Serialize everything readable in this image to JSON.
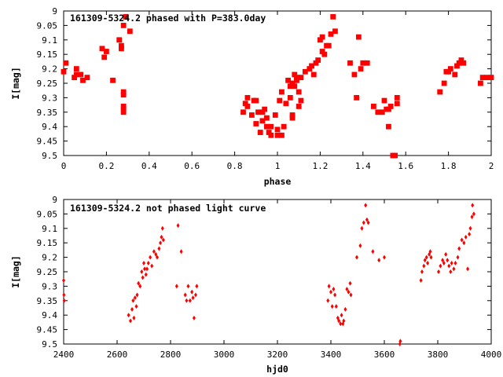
{
  "colors": {
    "points": "#ff0000",
    "axes": "#000000",
    "grid": "#a0a0a0",
    "background": "#ffffff"
  },
  "chart_data": [
    {
      "type": "scatter",
      "title": "161309-5324.2 phased with P=383.0day",
      "xlabel": "phase",
      "ylabel": "I[mag]",
      "xlim": [
        0,
        2
      ],
      "ylim": [
        9.5,
        9
      ],
      "y_inverted": true,
      "grid": false,
      "legend": "none",
      "xticks": [
        "0",
        "0.2",
        "0.4",
        "0.6",
        "0.8",
        "1",
        "1.2",
        "1.4",
        "1.6",
        "1.8",
        "2"
      ],
      "xtick_values": [
        0,
        0.2,
        0.4,
        0.6,
        0.8,
        1,
        1.2,
        1.4,
        1.6,
        1.8,
        2
      ],
      "yticks": [
        "9",
        "9.05",
        "9.1",
        "9.15",
        "9.2",
        "9.25",
        "9.3",
        "9.35",
        "9.4",
        "9.45",
        "9.5"
      ],
      "ytick_values": [
        9,
        9.05,
        9.1,
        9.15,
        9.2,
        9.25,
        9.3,
        9.35,
        9.4,
        9.45,
        9.5
      ],
      "marker": "square-large",
      "series": [
        {
          "points": [
            [
              0.0,
              9.21
            ],
            [
              0.01,
              9.18
            ],
            [
              0.05,
              9.23
            ],
            [
              0.06,
              9.22
            ],
            [
              0.06,
              9.2
            ],
            [
              0.08,
              9.22
            ],
            [
              0.09,
              9.24
            ],
            [
              0.11,
              9.23
            ],
            [
              0.18,
              9.13
            ],
            [
              0.19,
              9.16
            ],
            [
              0.2,
              9.14
            ],
            [
              0.23,
              9.24
            ],
            [
              0.26,
              9.1
            ],
            [
              0.27,
              9.13
            ],
            [
              0.27,
              9.12
            ],
            [
              0.28,
              9.28
            ],
            [
              0.28,
              9.29
            ],
            [
              0.28,
              9.33
            ],
            [
              0.28,
              9.35
            ],
            [
              0.28,
              9.34
            ],
            [
              0.28,
              9.05
            ],
            [
              0.29,
              9.02
            ],
            [
              0.31,
              9.07
            ],
            [
              0.84,
              9.35
            ],
            [
              0.85,
              9.32
            ],
            [
              0.86,
              9.33
            ],
            [
              0.86,
              9.3
            ],
            [
              0.88,
              9.36
            ],
            [
              0.89,
              9.31
            ],
            [
              0.9,
              9.31
            ],
            [
              0.9,
              9.39
            ],
            [
              0.91,
              9.35
            ],
            [
              0.92,
              9.42
            ],
            [
              0.93,
              9.35
            ],
            [
              0.93,
              9.38
            ],
            [
              0.94,
              9.34
            ],
            [
              0.95,
              9.37
            ],
            [
              0.95,
              9.4
            ],
            [
              0.96,
              9.42
            ],
            [
              0.97,
              9.43
            ],
            [
              0.97,
              9.4
            ],
            [
              0.99,
              9.36
            ],
            [
              1.0,
              9.41
            ],
            [
              1.0,
              9.43
            ],
            [
              1.01,
              9.31
            ],
            [
              1.02,
              9.28
            ],
            [
              1.02,
              9.43
            ],
            [
              1.03,
              9.4
            ],
            [
              1.04,
              9.32
            ],
            [
              1.05,
              9.24
            ],
            [
              1.06,
              9.3
            ],
            [
              1.06,
              9.26
            ],
            [
              1.07,
              9.25
            ],
            [
              1.07,
              9.36
            ],
            [
              1.07,
              9.37
            ],
            [
              1.08,
              9.26
            ],
            [
              1.08,
              9.22
            ],
            [
              1.09,
              9.24
            ],
            [
              1.09,
              9.23
            ],
            [
              1.1,
              9.33
            ],
            [
              1.1,
              9.28
            ],
            [
              1.11,
              9.31
            ],
            [
              1.11,
              9.23
            ],
            [
              1.13,
              9.21
            ],
            [
              1.15,
              9.2
            ],
            [
              1.16,
              9.19
            ],
            [
              1.17,
              9.22
            ],
            [
              1.18,
              9.18
            ],
            [
              1.19,
              9.17
            ],
            [
              1.2,
              9.1
            ],
            [
              1.21,
              9.09
            ],
            [
              1.21,
              9.14
            ],
            [
              1.22,
              9.15
            ],
            [
              1.23,
              9.12
            ],
            [
              1.24,
              9.12
            ],
            [
              1.25,
              9.08
            ],
            [
              1.26,
              9.02
            ],
            [
              1.27,
              9.07
            ],
            [
              1.34,
              9.18
            ],
            [
              1.36,
              9.22
            ],
            [
              1.37,
              9.3
            ],
            [
              1.38,
              9.09
            ],
            [
              1.39,
              9.2
            ],
            [
              1.4,
              9.18
            ],
            [
              1.42,
              9.18
            ],
            [
              1.45,
              9.33
            ],
            [
              1.47,
              9.35
            ],
            [
              1.49,
              9.35
            ],
            [
              1.5,
              9.31
            ],
            [
              1.51,
              9.34
            ],
            [
              1.52,
              9.4
            ],
            [
              1.52,
              9.34
            ],
            [
              1.53,
              9.33
            ],
            [
              1.54,
              9.5
            ],
            [
              1.55,
              9.5
            ],
            [
              1.56,
              9.32
            ],
            [
              1.56,
              9.3
            ],
            [
              1.76,
              9.28
            ],
            [
              1.78,
              9.25
            ],
            [
              1.79,
              9.21
            ],
            [
              1.8,
              9.21
            ],
            [
              1.81,
              9.2
            ],
            [
              1.83,
              9.22
            ],
            [
              1.84,
              9.19
            ],
            [
              1.85,
              9.18
            ],
            [
              1.86,
              9.17
            ],
            [
              1.87,
              9.18
            ],
            [
              1.95,
              9.25
            ],
            [
              1.96,
              9.23
            ],
            [
              1.98,
              9.23
            ],
            [
              2.0,
              9.23
            ]
          ]
        }
      ]
    },
    {
      "type": "scatter",
      "title": "161309-5324.2 not phased light curve",
      "xlabel": "hjd0",
      "ylabel": "I[mag]",
      "xlim": [
        2400,
        4000
      ],
      "ylim": [
        9.5,
        9
      ],
      "y_inverted": true,
      "grid": false,
      "legend": "none",
      "xticks": [
        "2400",
        "2600",
        "2800",
        "3000",
        "3200",
        "3400",
        "3600",
        "3800",
        "4000"
      ],
      "xtick_values": [
        2400,
        2600,
        2800,
        3000,
        3200,
        3400,
        3600,
        3800,
        4000
      ],
      "yticks": [
        "9",
        "9.05",
        "9.1",
        "9.15",
        "9.2",
        "9.25",
        "9.3",
        "9.35",
        "9.4",
        "9.45",
        "9.5"
      ],
      "ytick_values": [
        9,
        9.05,
        9.1,
        9.15,
        9.2,
        9.25,
        9.3,
        9.35,
        9.4,
        9.45,
        9.5
      ],
      "marker": "diamond-small",
      "series": [
        {
          "points": [
            [
              2400,
              9.28
            ],
            [
              2401,
              9.33
            ],
            [
              2402,
              9.35
            ],
            [
              2643,
              9.4
            ],
            [
              2650,
              9.42
            ],
            [
              2656,
              9.38
            ],
            [
              2660,
              9.35
            ],
            [
              2663,
              9.41
            ],
            [
              2667,
              9.34
            ],
            [
              2672,
              9.37
            ],
            [
              2675,
              9.33
            ],
            [
              2680,
              9.29
            ],
            [
              2686,
              9.3
            ],
            [
              2692,
              9.25
            ],
            [
              2696,
              9.27
            ],
            [
              2700,
              9.22
            ],
            [
              2703,
              9.24
            ],
            [
              2708,
              9.26
            ],
            [
              2712,
              9.24
            ],
            [
              2717,
              9.22
            ],
            [
              2724,
              9.2
            ],
            [
              2730,
              9.23
            ],
            [
              2738,
              9.18
            ],
            [
              2745,
              9.19
            ],
            [
              2750,
              9.2
            ],
            [
              2757,
              9.17
            ],
            [
              2762,
              9.15
            ],
            [
              2766,
              9.13
            ],
            [
              2770,
              9.1
            ],
            [
              2773,
              9.14
            ],
            [
              2828,
              9.09
            ],
            [
              2823,
              9.3
            ],
            [
              2840,
              9.18
            ],
            [
              2855,
              9.33
            ],
            [
              2860,
              9.35
            ],
            [
              2866,
              9.3
            ],
            [
              2873,
              9.35
            ],
            [
              2880,
              9.32
            ],
            [
              2884,
              9.34
            ],
            [
              2888,
              9.41
            ],
            [
              2894,
              9.33
            ],
            [
              2898,
              9.3
            ],
            [
              3389,
              9.35
            ],
            [
              3393,
              9.3
            ],
            [
              3400,
              9.32
            ],
            [
              3405,
              9.37
            ],
            [
              3410,
              9.31
            ],
            [
              3415,
              9.33
            ],
            [
              3420,
              9.37
            ],
            [
              3426,
              9.41
            ],
            [
              3430,
              9.42
            ],
            [
              3436,
              9.43
            ],
            [
              3440,
              9.4
            ],
            [
              3445,
              9.43
            ],
            [
              3448,
              9.42
            ],
            [
              3454,
              9.38
            ],
            [
              3460,
              9.31
            ],
            [
              3466,
              9.32
            ],
            [
              3472,
              9.29
            ],
            [
              3475,
              9.33
            ],
            [
              3497,
              9.2
            ],
            [
              3510,
              9.16
            ],
            [
              3516,
              9.1
            ],
            [
              3523,
              9.08
            ],
            [
              3530,
              9.02
            ],
            [
              3535,
              9.07
            ],
            [
              3540,
              9.08
            ],
            [
              3557,
              9.18
            ],
            [
              3580,
              9.21
            ],
            [
              3600,
              9.2
            ],
            [
              3658,
              9.5
            ],
            [
              3660,
              9.49
            ],
            [
              3737,
              9.28
            ],
            [
              3741,
              9.25
            ],
            [
              3748,
              9.23
            ],
            [
              3752,
              9.21
            ],
            [
              3758,
              9.2
            ],
            [
              3762,
              9.22
            ],
            [
              3768,
              9.19
            ],
            [
              3772,
              9.18
            ],
            [
              3775,
              9.2
            ],
            [
              3803,
              9.25
            ],
            [
              3810,
              9.23
            ],
            [
              3818,
              9.21
            ],
            [
              3823,
              9.22
            ],
            [
              3830,
              9.19
            ],
            [
              3836,
              9.21
            ],
            [
              3842,
              9.23
            ],
            [
              3848,
              9.25
            ],
            [
              3852,
              9.22
            ],
            [
              3860,
              9.24
            ],
            [
              3866,
              9.22
            ],
            [
              3875,
              9.2
            ],
            [
              3880,
              9.17
            ],
            [
              3890,
              9.14
            ],
            [
              3898,
              9.15
            ],
            [
              3905,
              9.13
            ],
            [
              3912,
              9.24
            ],
            [
              3918,
              9.12
            ],
            [
              3922,
              9.1
            ],
            [
              3928,
              9.06
            ],
            [
              3930,
              9.02
            ],
            [
              3935,
              9.05
            ]
          ]
        }
      ]
    }
  ]
}
